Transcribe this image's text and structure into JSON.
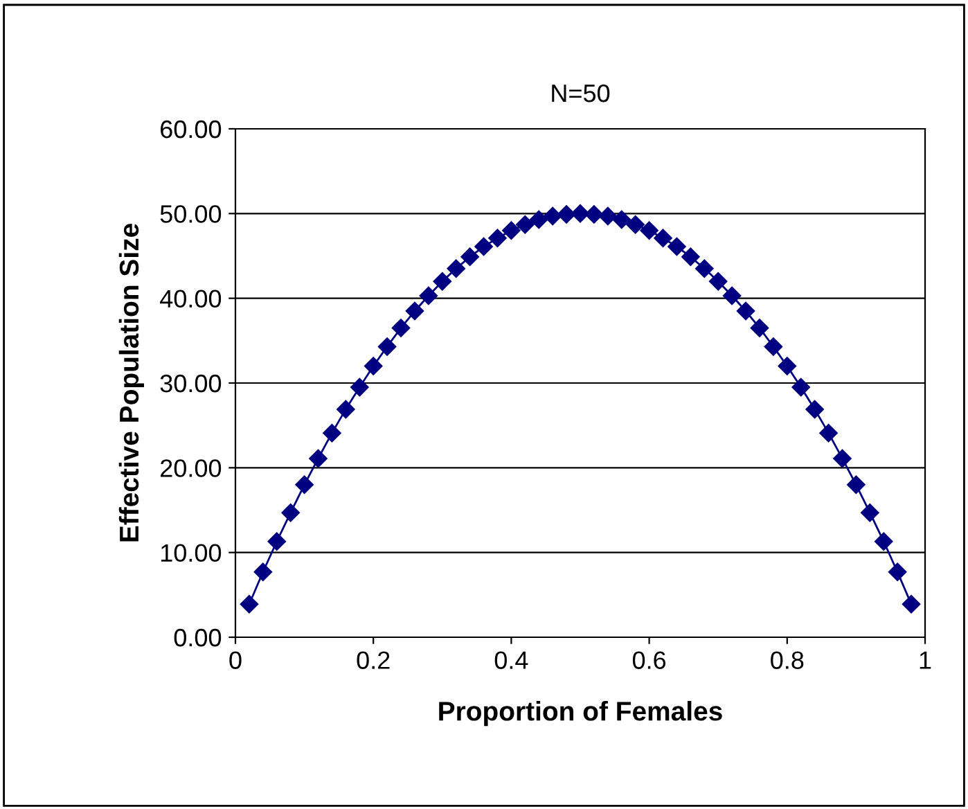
{
  "chart_data": {
    "type": "line",
    "title": "N=50",
    "xlabel": "Proportion of Females",
    "ylabel": "Effective Population Size",
    "x": [
      0.02,
      0.04,
      0.06,
      0.08,
      0.1,
      0.12,
      0.14,
      0.16,
      0.18,
      0.2,
      0.22,
      0.24,
      0.26,
      0.28,
      0.3,
      0.32,
      0.34,
      0.36,
      0.38,
      0.4,
      0.42,
      0.44,
      0.46,
      0.48,
      0.5,
      0.52,
      0.54,
      0.56,
      0.58,
      0.6,
      0.62,
      0.64,
      0.66,
      0.68,
      0.7,
      0.72,
      0.74,
      0.76,
      0.78,
      0.8,
      0.82,
      0.84,
      0.86,
      0.88,
      0.9,
      0.92,
      0.94,
      0.96,
      0.98
    ],
    "series": [
      {
        "color": "#000080",
        "values": [
          3.9,
          7.7,
          11.3,
          14.7,
          18.0,
          21.1,
          24.1,
          26.9,
          29.5,
          32.0,
          34.3,
          36.5,
          38.5,
          40.3,
          42.0,
          43.5,
          44.9,
          46.1,
          47.1,
          48.0,
          48.7,
          49.3,
          49.7,
          49.9,
          50.0,
          49.9,
          49.7,
          49.3,
          48.7,
          48.0,
          47.1,
          46.1,
          44.9,
          43.5,
          42.0,
          40.3,
          38.5,
          36.5,
          34.3,
          32.0,
          29.5,
          26.9,
          24.1,
          21.1,
          18.0,
          14.7,
          11.3,
          7.7,
          3.9
        ]
      }
    ],
    "xlim": [
      0,
      1
    ],
    "xticks": [
      0,
      0.2,
      0.4,
      0.6,
      0.8,
      1
    ],
    "ylim": [
      0,
      60
    ],
    "yticks": [
      {
        "value": 0,
        "label": "0.00"
      },
      {
        "value": 10,
        "label": "10.00"
      },
      {
        "value": 20,
        "label": "20.00"
      },
      {
        "value": 30,
        "label": "30.00"
      },
      {
        "value": 40,
        "label": "40.00"
      },
      {
        "value": 50,
        "label": "50.00"
      },
      {
        "value": 60,
        "label": "60.00"
      }
    ],
    "grid": "y",
    "marker": "diamond",
    "line_style": "solid"
  }
}
